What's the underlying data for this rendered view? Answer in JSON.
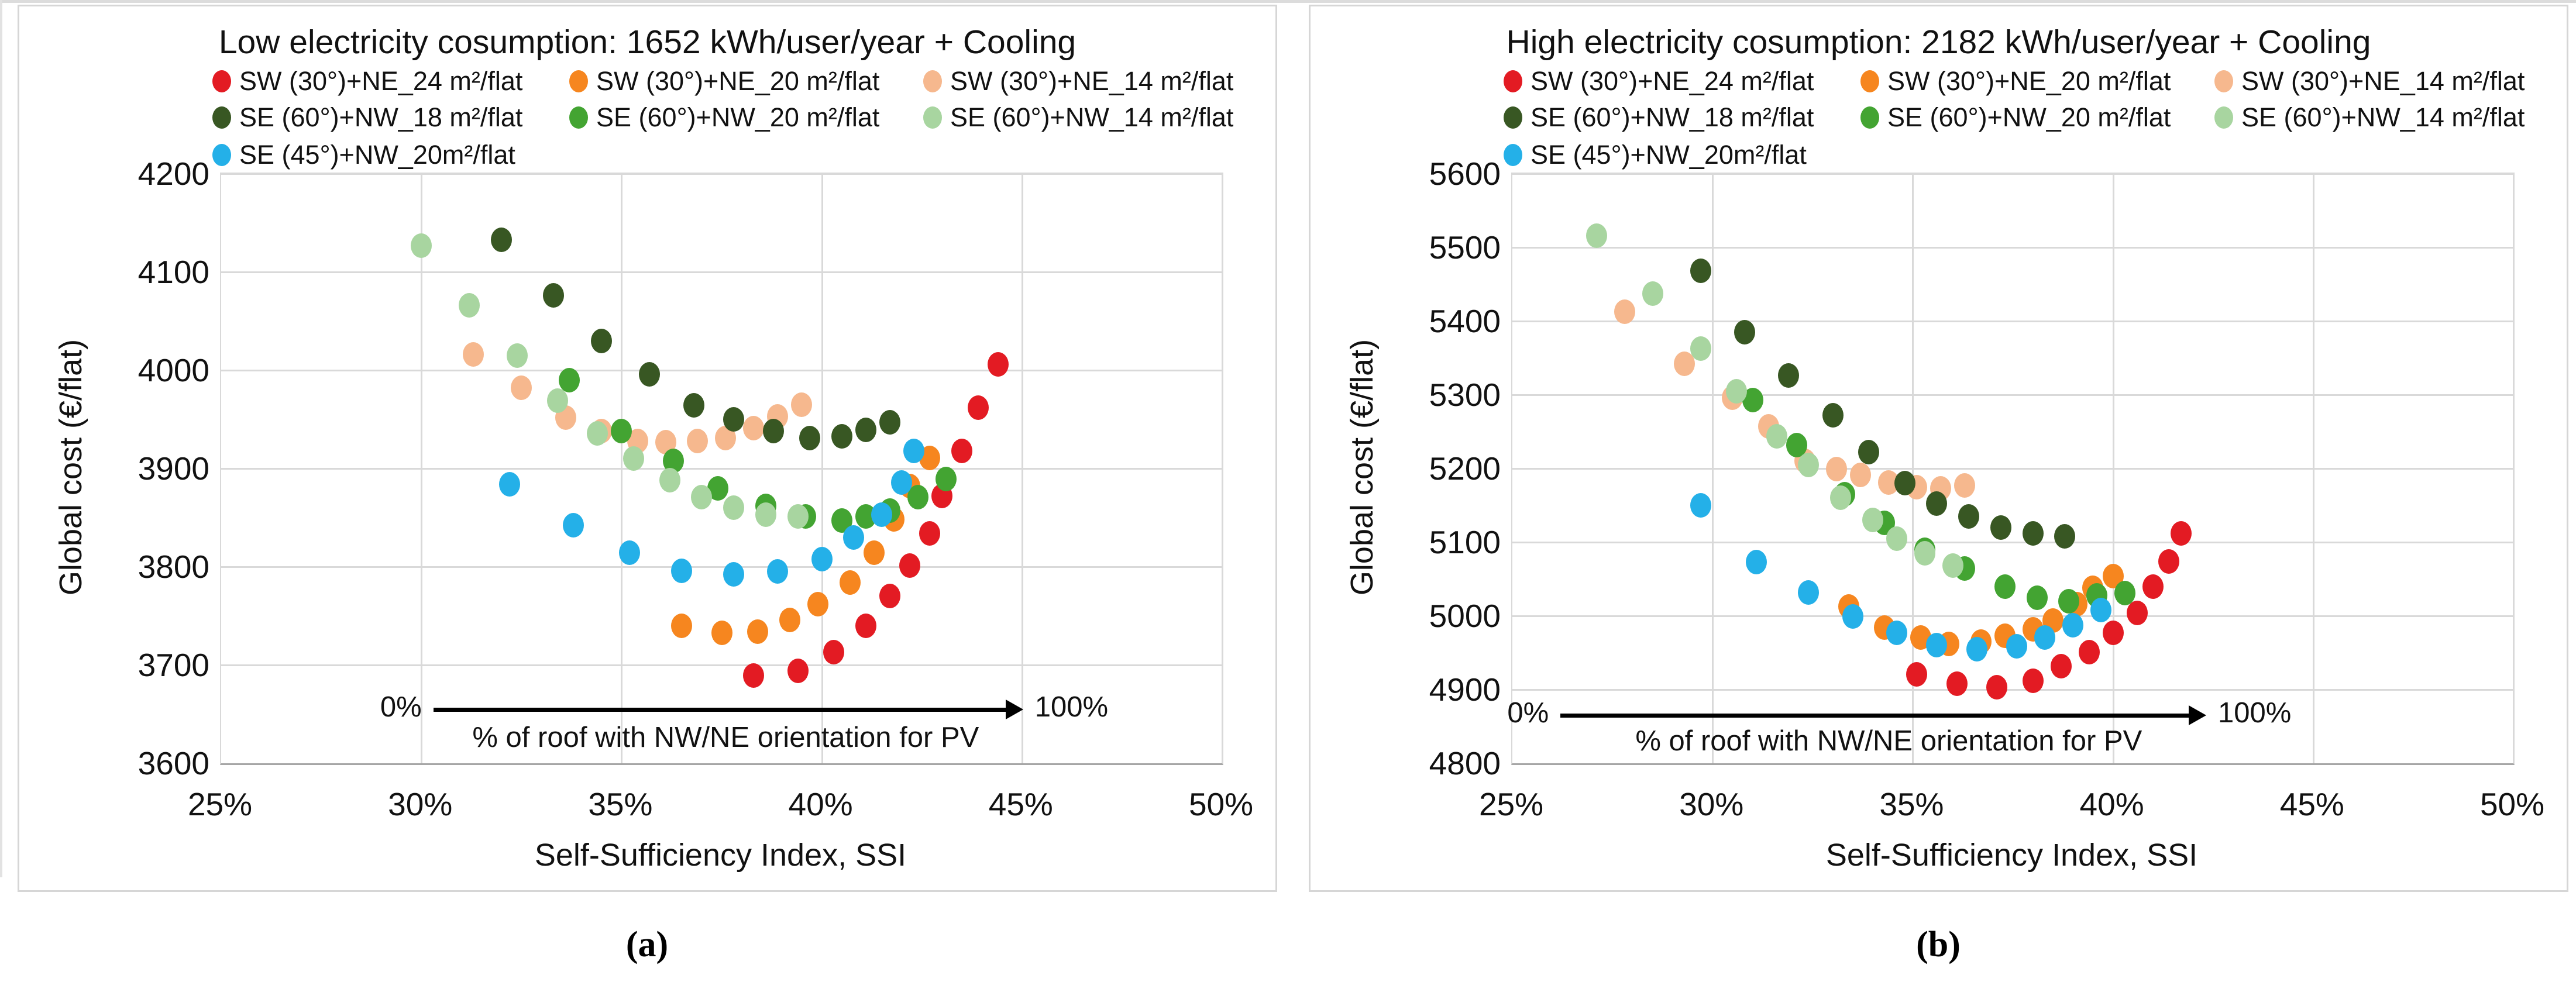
{
  "colors": {
    "red": "#e31b23",
    "orange": "#f6861f",
    "peach": "#f6b88e",
    "dark_green": "#385723",
    "green": "#43a432",
    "light_green": "#a8d5a0",
    "blue": "#24b0e8",
    "gridline": "#d9d9d9",
    "panel_border": "#d6d6d6",
    "text": "#111111"
  },
  "captions": {
    "a": "(a)",
    "b": "(b)"
  },
  "chart_data": [
    {
      "id": "a",
      "type": "scatter",
      "title": "Low electricity cosumption: 1652 kWh/user/year + Cooling",
      "xlabel": "Self-Sufficiency Index, SSI",
      "ylabel": "Global cost (€/flat)",
      "xlim": [
        25,
        50
      ],
      "ylim": [
        3600,
        4200
      ],
      "xticks": [
        25,
        30,
        35,
        40,
        45,
        50
      ],
      "xtick_labels": [
        "25%",
        "30%",
        "35%",
        "40%",
        "45%",
        "50%"
      ],
      "yticks": [
        4200,
        4100,
        4000,
        3900,
        3800,
        3700,
        3600
      ],
      "grid": true,
      "legend_position": "top",
      "annotation": {
        "zero_label": "0%",
        "hundred_label": "100%",
        "text": "% of roof with NW/NE orientation for PV",
        "arrow_x1": 30.3,
        "arrow_x2": 45.0,
        "arrow_y": 3655,
        "text_x": 37.6,
        "text_y": 3626
      },
      "series": [
        {
          "name": "SW (30°)+NE_24 m²/flat",
          "color_key": "red",
          "points": [
            [
              38.3,
              3689
            ],
            [
              39.4,
              3694
            ],
            [
              40.3,
              3713
            ],
            [
              41.1,
              3740
            ],
            [
              41.7,
              3770
            ],
            [
              42.2,
              3801
            ],
            [
              42.7,
              3834
            ],
            [
              43.0,
              3872
            ],
            [
              43.5,
              3918
            ],
            [
              43.9,
              3962
            ],
            [
              44.4,
              4006
            ]
          ]
        },
        {
          "name": "SW (30°)+NE_20 m²/flat",
          "color_key": "orange",
          "points": [
            [
              36.5,
              3740
            ],
            [
              37.5,
              3733
            ],
            [
              38.4,
              3734
            ],
            [
              39.2,
              3746
            ],
            [
              39.9,
              3762
            ],
            [
              40.7,
              3784
            ],
            [
              41.3,
              3814
            ],
            [
              41.8,
              3848
            ],
            [
              42.2,
              3882
            ],
            [
              42.7,
              3911
            ]
          ]
        },
        {
          "name": "SW (30°)+NE_14 m²/flat",
          "color_key": "peach",
          "points": [
            [
              31.3,
              4016
            ],
            [
              32.5,
              3982
            ],
            [
              33.6,
              3952
            ],
            [
              34.5,
              3938
            ],
            [
              35.4,
              3928
            ],
            [
              36.1,
              3927
            ],
            [
              36.9,
              3928
            ],
            [
              37.6,
              3931
            ],
            [
              38.3,
              3941
            ],
            [
              38.9,
              3953
            ],
            [
              39.5,
              3965
            ]
          ]
        },
        {
          "name": "SE (60°)+NW_18 m²/flat",
          "color_key": "dark_green",
          "points": [
            [
              32.0,
              4133
            ],
            [
              33.3,
              4076
            ],
            [
              34.5,
              4030
            ],
            [
              35.7,
              3996
            ],
            [
              36.8,
              3964
            ],
            [
              37.8,
              3950
            ],
            [
              38.8,
              3938
            ],
            [
              39.7,
              3931
            ],
            [
              40.5,
              3933
            ],
            [
              41.1,
              3939
            ],
            [
              41.7,
              3947
            ]
          ]
        },
        {
          "name": "SE (60°)+NW_20 m²/flat",
          "color_key": "green",
          "points": [
            [
              33.7,
              3990
            ],
            [
              35.0,
              3938
            ],
            [
              36.3,
              3908
            ],
            [
              37.4,
              3880
            ],
            [
              38.6,
              3862
            ],
            [
              39.6,
              3851
            ],
            [
              40.5,
              3847
            ],
            [
              41.1,
              3851
            ],
            [
              41.7,
              3857
            ],
            [
              42.4,
              3871
            ],
            [
              43.1,
              3889
            ]
          ]
        },
        {
          "name": "SE (60°)+NW_14 m²/flat",
          "color_key": "light_green",
          "points": [
            [
              30.0,
              4127
            ],
            [
              31.2,
              4066
            ],
            [
              32.4,
              4015
            ],
            [
              33.4,
              3969
            ],
            [
              34.4,
              3936
            ],
            [
              35.3,
              3910
            ],
            [
              36.2,
              3888
            ],
            [
              37.0,
              3871
            ],
            [
              37.8,
              3860
            ],
            [
              38.6,
              3853
            ],
            [
              39.4,
              3851
            ]
          ]
        },
        {
          "name": "SE (45°)+NW_20m²/flat",
          "color_key": "blue",
          "points": [
            [
              32.2,
              3884
            ],
            [
              33.8,
              3842
            ],
            [
              35.2,
              3814
            ],
            [
              36.5,
              3796
            ],
            [
              37.8,
              3792
            ],
            [
              38.9,
              3795
            ],
            [
              40.0,
              3808
            ],
            [
              40.8,
              3830
            ],
            [
              41.5,
              3853
            ],
            [
              42.0,
              3886
            ],
            [
              42.3,
              3918
            ]
          ]
        }
      ]
    },
    {
      "id": "b",
      "type": "scatter",
      "title": "High electricity cosumption: 2182 kWh/user/year + Cooling",
      "xlabel": "Self-Sufficiency Index, SSI",
      "ylabel": "Global cost (€/flat)",
      "xlim": [
        25,
        50
      ],
      "ylim": [
        4800,
        5600
      ],
      "xticks": [
        25,
        30,
        35,
        40,
        45,
        50
      ],
      "xtick_labels": [
        "25%",
        "30%",
        "35%",
        "40%",
        "45%",
        "50%"
      ],
      "yticks": [
        5600,
        5500,
        5400,
        5300,
        5200,
        5100,
        5000,
        4900,
        4800
      ],
      "grid": true,
      "legend_position": "top",
      "annotation": {
        "zero_label": "0%",
        "hundred_label": "100%",
        "text": "% of roof with NW/NE orientation for PV",
        "arrow_x1": 26.2,
        "arrow_x2": 42.3,
        "arrow_y": 4865,
        "text_x": 34.4,
        "text_y": 4830
      },
      "series": [
        {
          "name": "SW (30°)+NE_24 m²/flat",
          "color_key": "red",
          "points": [
            [
              35.1,
              4921
            ],
            [
              36.1,
              4908
            ],
            [
              37.1,
              4903
            ],
            [
              38.0,
              4912
            ],
            [
              38.7,
              4932
            ],
            [
              39.4,
              4951
            ],
            [
              40.0,
              4977
            ],
            [
              40.6,
              5004
            ],
            [
              41.0,
              5040
            ],
            [
              41.4,
              5074
            ],
            [
              41.7,
              5112
            ]
          ]
        },
        {
          "name": "SW (30°)+NE_20 m²/flat",
          "color_key": "orange",
          "points": [
            [
              33.4,
              5013
            ],
            [
              34.3,
              4984
            ],
            [
              35.2,
              4971
            ],
            [
              35.9,
              4962
            ],
            [
              36.7,
              4965
            ],
            [
              37.3,
              4973
            ],
            [
              38.0,
              4982
            ],
            [
              38.5,
              4994
            ],
            [
              39.1,
              5016
            ],
            [
              39.5,
              5038
            ],
            [
              40.0,
              5054
            ]
          ]
        },
        {
          "name": "SW (30°)+NE_14 m²/flat",
          "color_key": "peach",
          "points": [
            [
              27.8,
              5413
            ],
            [
              29.3,
              5342
            ],
            [
              30.5,
              5296
            ],
            [
              31.4,
              5257
            ],
            [
              32.3,
              5210
            ],
            [
              33.1,
              5199
            ],
            [
              33.7,
              5191
            ],
            [
              34.4,
              5181
            ],
            [
              35.1,
              5175
            ],
            [
              35.7,
              5173
            ],
            [
              36.3,
              5177
            ]
          ]
        },
        {
          "name": "SE (60°)+NW_18 m²/flat",
          "color_key": "dark_green",
          "points": [
            [
              29.7,
              5468
            ],
            [
              30.8,
              5385
            ],
            [
              31.9,
              5326
            ],
            [
              33.0,
              5272
            ],
            [
              33.9,
              5222
            ],
            [
              34.8,
              5180
            ],
            [
              35.6,
              5152
            ],
            [
              36.4,
              5135
            ],
            [
              37.2,
              5120
            ],
            [
              38.0,
              5112
            ],
            [
              38.8,
              5108
            ]
          ]
        },
        {
          "name": "SE (60°)+NW_20 m²/flat",
          "color_key": "green",
          "points": [
            [
              31.0,
              5293
            ],
            [
              32.1,
              5232
            ],
            [
              33.3,
              5165
            ],
            [
              34.3,
              5126
            ],
            [
              35.3,
              5090
            ],
            [
              36.3,
              5064
            ],
            [
              37.3,
              5040
            ],
            [
              38.1,
              5025
            ],
            [
              38.9,
              5020
            ],
            [
              39.6,
              5028
            ],
            [
              40.3,
              5031
            ]
          ]
        },
        {
          "name": "SE (60°)+NW_14 m²/flat",
          "color_key": "light_green",
          "points": [
            [
              27.1,
              5516
            ],
            [
              28.5,
              5437
            ],
            [
              29.7,
              5363
            ],
            [
              30.6,
              5305
            ],
            [
              31.6,
              5244
            ],
            [
              32.4,
              5205
            ],
            [
              33.2,
              5160
            ],
            [
              34.0,
              5130
            ],
            [
              34.6,
              5105
            ],
            [
              35.3,
              5085
            ],
            [
              36.0,
              5068
            ]
          ]
        },
        {
          "name": "SE (45°)+NW_20m²/flat",
          "color_key": "blue",
          "points": [
            [
              29.7,
              5150
            ],
            [
              31.1,
              5073
            ],
            [
              32.4,
              5032
            ],
            [
              33.5,
              4999
            ],
            [
              34.6,
              4977
            ],
            [
              35.6,
              4960
            ],
            [
              36.6,
              4955
            ],
            [
              37.6,
              4959
            ],
            [
              38.3,
              4971
            ],
            [
              39.0,
              4987
            ],
            [
              39.7,
              5008
            ]
          ]
        }
      ]
    }
  ]
}
